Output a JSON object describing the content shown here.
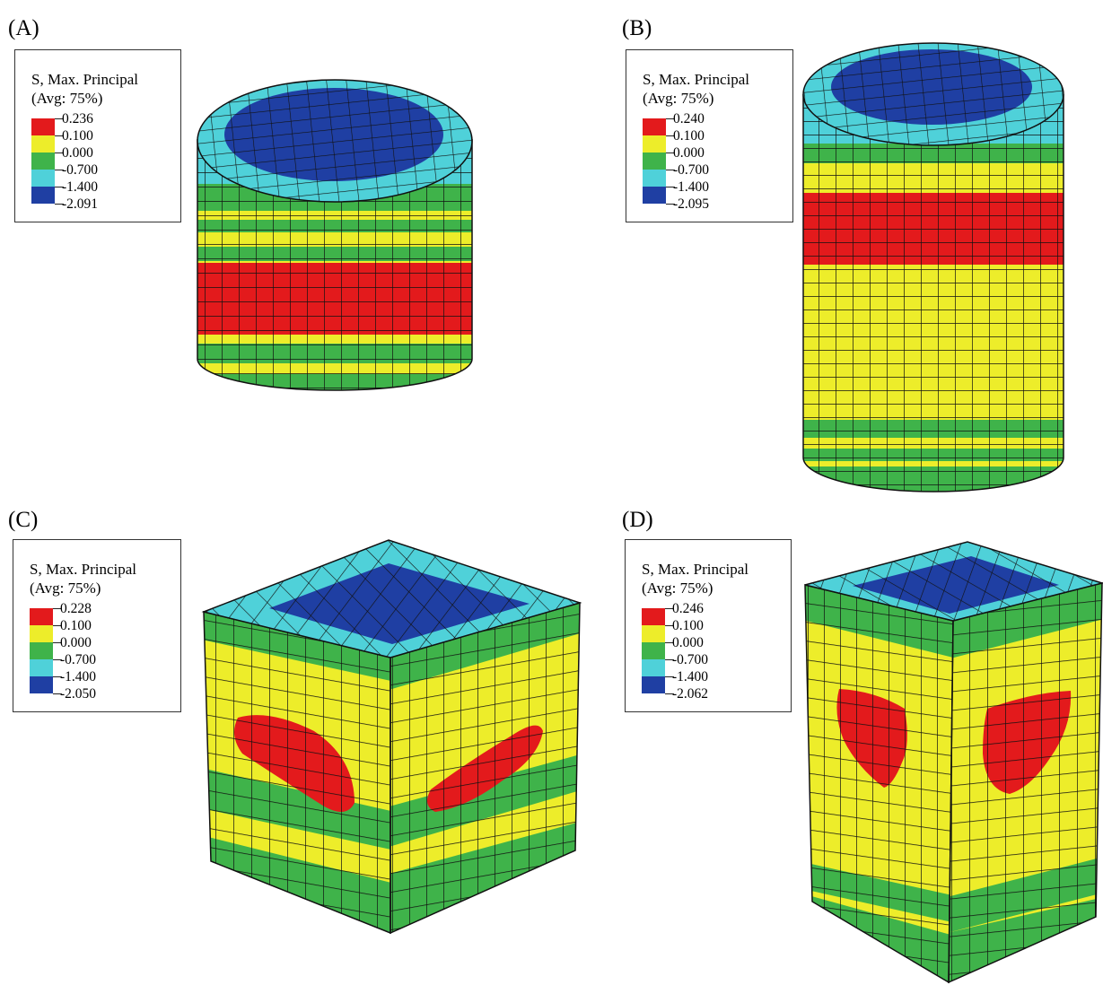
{
  "legend_colors": [
    "#e31a1c",
    "#eded2a",
    "#3fb34a",
    "#4fd1d9",
    "#1f3fa3"
  ],
  "panels": [
    {
      "id": "A",
      "label": "(A)",
      "legend": {
        "title": "S, Max. Principal",
        "avg": "(Avg: 75%)",
        "values": [
          "0.236",
          "0.100",
          "0.000",
          "-0.700",
          "-1.400",
          "-2.091"
        ]
      }
    },
    {
      "id": "B",
      "label": "(B)",
      "legend": {
        "title": "S, Max. Principal",
        "avg": "(Avg: 75%)",
        "values": [
          "0.240",
          "0.100",
          "0.000",
          "-0.700",
          "-1.400",
          "-2.095"
        ]
      }
    },
    {
      "id": "C",
      "label": "(C)",
      "legend": {
        "title": "S, Max. Principal",
        "avg": "(Avg: 75%)",
        "values": [
          "0.228",
          "0.100",
          "0.000",
          "-0.700",
          "-1.400",
          "-2.050"
        ]
      }
    },
    {
      "id": "D",
      "label": "(D)",
      "legend": {
        "title": "S, Max. Principal",
        "avg": "(Avg: 75%)",
        "values": [
          "0.246",
          "0.100",
          "0.000",
          "-0.700",
          "-1.400",
          "-2.062"
        ]
      }
    }
  ]
}
